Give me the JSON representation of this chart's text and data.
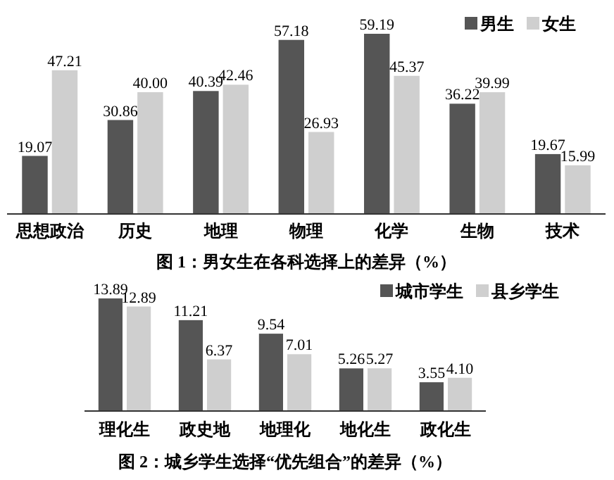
{
  "chart_data": [
    {
      "type": "bar",
      "title": "图 1：男女生在各科选择上的差异（%）",
      "categories": [
        "思想政治",
        "历史",
        "地理",
        "物理",
        "化学",
        "生物",
        "技术"
      ],
      "legend": "top right",
      "series": [
        {
          "name": "男生",
          "color": "#555555",
          "values": [
            19.07,
            30.86,
            40.39,
            57.18,
            59.19,
            36.22,
            19.67
          ],
          "value_labels": [
            "19.07",
            "30.86",
            "40.39",
            "57.18",
            "59.19",
            "36.22",
            "19.67"
          ]
        },
        {
          "name": "女生",
          "color": "#cfcfcf",
          "values": [
            47.21,
            40.0,
            42.46,
            26.93,
            45.37,
            39.99,
            15.99
          ],
          "value_labels": [
            "47.21",
            "40.00",
            "42.46",
            "26.93",
            "45.37",
            "39.99",
            "15.99"
          ]
        }
      ]
    },
    {
      "type": "bar",
      "title": "图 2：城乡学生选择“优先组合”的差异（%）",
      "categories": [
        "理化生",
        "政史地",
        "地理化",
        "地化生",
        "政化生"
      ],
      "legend": "top right",
      "series": [
        {
          "name": "城市学生",
          "color": "#555555",
          "values": [
            13.89,
            11.21,
            9.54,
            5.26,
            3.55
          ],
          "value_labels": [
            "13.89",
            "11.21",
            "9.54",
            "5.26",
            "3.55"
          ]
        },
        {
          "name": "县乡学生",
          "color": "#cfcfcf",
          "values": [
            12.89,
            6.37,
            7.01,
            5.27,
            4.1
          ],
          "value_labels": [
            "12.89",
            "6.37",
            "7.01",
            "5.27",
            "4.10"
          ]
        }
      ]
    }
  ]
}
